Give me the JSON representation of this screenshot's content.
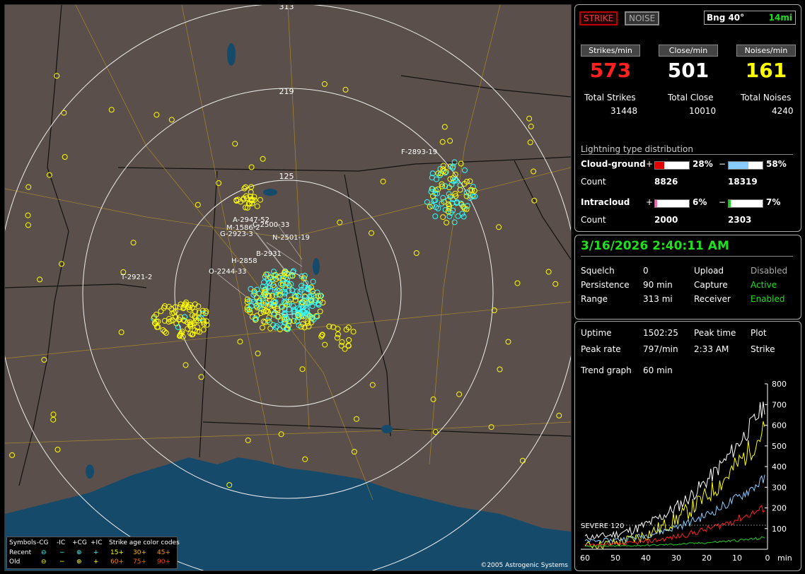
{
  "map": {
    "range_labels": [
      "313",
      "219",
      "125"
    ],
    "cell_labels": [
      "F-2893-19",
      "A-2947-52",
      "G-2923-3",
      "M-1586-2",
      "C-2500-33",
      "N-2501-19",
      "B-2931",
      "H-2858",
      "O-2244-33",
      "T-2921-2"
    ],
    "copyright": "©2005 Astrogenic Systems",
    "legend": {
      "symbols_label": "Symbols",
      "columns": [
        "-CG",
        "-IC",
        "+CG",
        "+IC"
      ],
      "recent_label": "Recent",
      "old_label": "Old",
      "recent_symbols": [
        "⊖",
        "−",
        "⊕",
        "+"
      ],
      "old_symbols": [
        "⊖",
        "−",
        "⊕",
        "+"
      ],
      "age_title": "Strike age color codes",
      "ages_row1": [
        "15+",
        "30+",
        "45+"
      ],
      "ages_row2": [
        "60+",
        "75+",
        "90+"
      ]
    }
  },
  "top": {
    "strike_button": "STRIKE",
    "noise_button": "NOISE",
    "bearing": "Bng 40°",
    "distance": "14mi",
    "rate_headers": [
      "Strikes/min",
      "Close/min",
      "Noises/min"
    ],
    "rates": [
      "573",
      "501",
      "161"
    ],
    "total_labels": [
      "Total Strikes",
      "Total Close",
      "Total Noises"
    ],
    "totals": [
      "31448",
      "10010",
      "4240"
    ],
    "dist_title": "Lightning type distribution",
    "cg_label": "Cloud-ground",
    "ic_label": "Intracloud",
    "count_label": "Count",
    "plus": "+",
    "minus": "−",
    "cg_pos_pct": "28%",
    "cg_neg_pct": "58%",
    "cg_pos_count": "8826",
    "cg_neg_count": "18319",
    "ic_pos_pct": "6%",
    "ic_neg_pct": "7%",
    "ic_pos_count": "2000",
    "ic_neg_count": "2303",
    "bar_fractions": {
      "cg_pos": 0.28,
      "cg_neg": 0.58,
      "ic_pos": 0.06,
      "ic_neg": 0.07
    }
  },
  "status": {
    "datetime": "3/16/2026 2:40:11 AM",
    "rows": [
      {
        "k1": "Squelch",
        "v1": "0",
        "k2": "Upload",
        "v2": "Disabled"
      },
      {
        "k1": "Persistence",
        "v1": "90 min",
        "k2": "Capture",
        "v2": "Active"
      },
      {
        "k1": "Range",
        "v1": "313 mi",
        "k2": "Receiver",
        "v2": "Enabled"
      }
    ]
  },
  "trend": {
    "uptime_label": "Uptime",
    "uptime": "1502:25",
    "peak_time_label": "Peak time",
    "peak_time": "2:33 AM",
    "plot_label": "Plot",
    "plot_value": "Strike",
    "peak_rate_label": "Peak rate",
    "peak_rate": "797/min",
    "trend_label": "Trend graph",
    "trend_value": "60 min",
    "severe_label": "SEVERE 120",
    "y_ticks": [
      "800",
      "700",
      "600",
      "500",
      "400",
      "300",
      "200",
      "100"
    ],
    "x_ticks": [
      "60",
      "50",
      "40",
      "30",
      "20",
      "10",
      "0"
    ],
    "x_unit": "min"
  },
  "colors": {
    "strike_red": "#ff2020",
    "close_white": "#ffffff",
    "noise_yellow": "#ffff00",
    "active_green": "#22dd22",
    "cg_pos_bar": "#e00000",
    "cg_neg_bar": "#88ccff",
    "ic_pos_bar": "#ff66aa",
    "ic_neg_bar": "#22cc22",
    "map_land": "#5a4f4a",
    "map_water": "#164a6a"
  }
}
